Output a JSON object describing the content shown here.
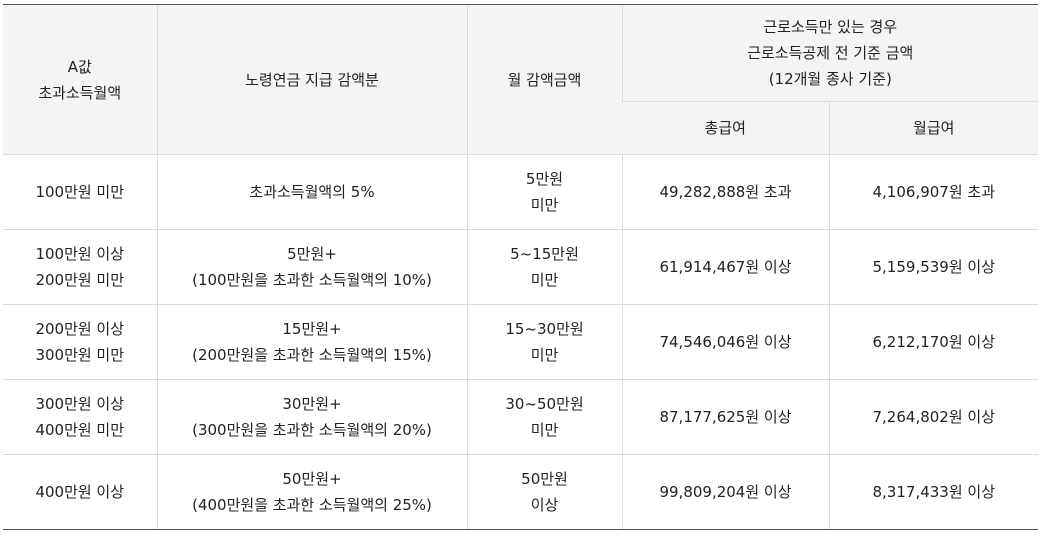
{
  "header": {
    "col_a": [
      "A값",
      "초과소득월액"
    ],
    "col_pension": "노령연금 지급 감액분",
    "col_monthly": "월 감액금액",
    "col_income": [
      "근로소득만 있는 경우",
      "근로소득공제 전 기준 금액",
      "(12개월 종사 기준)"
    ],
    "col_total": "총급여",
    "col_monthly_pay": "월급여"
  },
  "rows": [
    {
      "a": [
        "100만원 미만"
      ],
      "pension": [
        "초과소득월액의 5%"
      ],
      "monthly": [
        "5만원",
        "미만"
      ],
      "total": "49,282,888원 초과",
      "monthly_pay": "4,106,907원 초과"
    },
    {
      "a": [
        "100만원 이상",
        "200만원 미만"
      ],
      "pension": [
        "5만원+",
        "(100만원을 초과한 소득월액의 10%)"
      ],
      "monthly": [
        "5~15만원",
        "미만"
      ],
      "total": "61,914,467원 이상",
      "monthly_pay": "5,159,539원 이상"
    },
    {
      "a": [
        "200만원 이상",
        "300만원 미만"
      ],
      "pension": [
        "15만원+",
        "(200만원을 초과한 소득월액의 15%)"
      ],
      "monthly": [
        "15~30만원",
        "미만"
      ],
      "total": "74,546,046원 이상",
      "monthly_pay": "6,212,170원 이상"
    },
    {
      "a": [
        "300만원 이상",
        "400만원 미만"
      ],
      "pension": [
        "30만원+",
        "(300만원을 초과한 소득월액의 20%)"
      ],
      "monthly": [
        "30~50만원",
        "미만"
      ],
      "total": "87,177,625원 이상",
      "monthly_pay": "7,264,802원 이상"
    },
    {
      "a": [
        "400만원 이상"
      ],
      "pension": [
        "50만원+",
        "(400만원을 초과한 소득월액의 25%)"
      ],
      "monthly": [
        "50만원",
        "이상"
      ],
      "total": "99,809,204원 이상",
      "monthly_pay": "8,317,433원 이상"
    }
  ]
}
